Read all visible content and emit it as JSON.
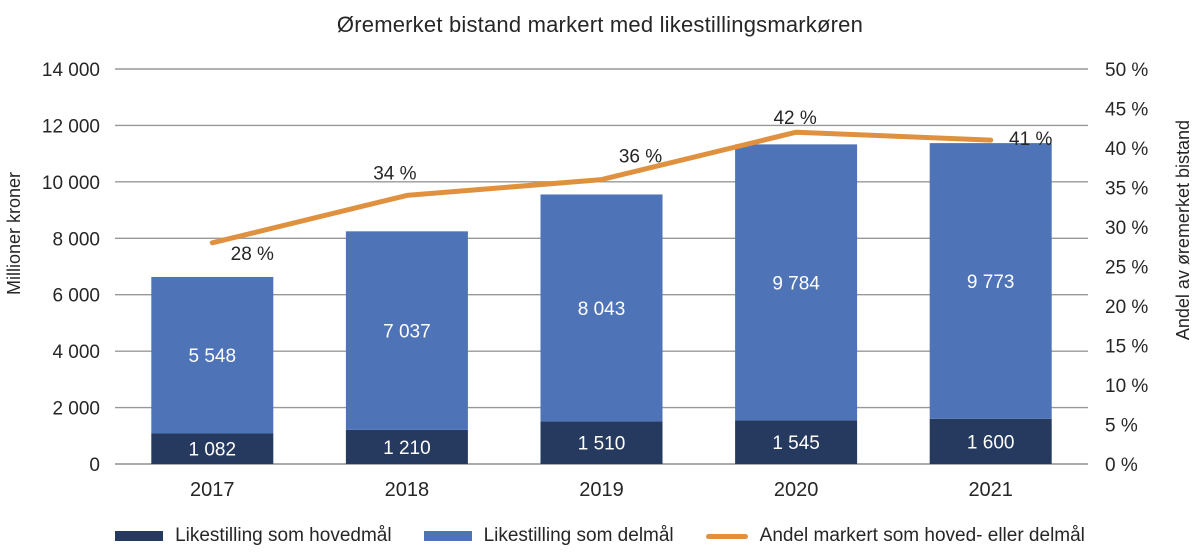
{
  "chart_data": {
    "type": "bar",
    "variant": "stacked-bars-with-line-on-secondary-axis",
    "title": "Øremerket bistand markert med likestillingsmarkøren",
    "categories": [
      "2017",
      "2018",
      "2019",
      "2020",
      "2021"
    ],
    "series": [
      {
        "name": "Likestilling som hovedmål",
        "values": [
          1082,
          1210,
          1510,
          1545,
          1600
        ],
        "labels": [
          "1 082",
          "1 210",
          "1 510",
          "1 545",
          "1 600"
        ],
        "color": "#26395e"
      },
      {
        "name": "Likestilling som delmål",
        "values": [
          5548,
          7037,
          8043,
          9784,
          9773
        ],
        "labels": [
          "5 548",
          "7 037",
          "8 043",
          "9 784",
          "9 773"
        ],
        "color": "#4e73b6"
      }
    ],
    "line_series": {
      "name": "Andel markert som hoved- eller delmål",
      "axis": "right",
      "values": [
        28,
        34,
        36,
        42,
        41
      ],
      "labels": [
        "28 %",
        "34 %",
        "36 %",
        "42 %",
        "41 %"
      ],
      "color": "#e0913f"
    },
    "y_left": {
      "label": "Millioner kroner",
      "min": 0,
      "max": 14000,
      "ticks": [
        {
          "value": 0,
          "label": "0"
        },
        {
          "value": 2000,
          "label": "2 000"
        },
        {
          "value": 4000,
          "label": "4 000"
        },
        {
          "value": 6000,
          "label": "6 000"
        },
        {
          "value": 8000,
          "label": "8 000"
        },
        {
          "value": 10000,
          "label": "10 000"
        },
        {
          "value": 12000,
          "label": "12 000"
        },
        {
          "value": 14000,
          "label": "14 000"
        }
      ]
    },
    "y_right": {
      "label": "Andel av øremerket bistand",
      "min": 0,
      "max": 50,
      "ticks": [
        {
          "value": 0,
          "label": "0 %"
        },
        {
          "value": 5,
          "label": "5 %"
        },
        {
          "value": 10,
          "label": "10 %"
        },
        {
          "value": 15,
          "label": "15 %"
        },
        {
          "value": 20,
          "label": "20 %"
        },
        {
          "value": 25,
          "label": "25 %"
        },
        {
          "value": 30,
          "label": "30 %"
        },
        {
          "value": 35,
          "label": "35 %"
        },
        {
          "value": 40,
          "label": "40 %"
        },
        {
          "value": 45,
          "label": "45 %"
        },
        {
          "value": 50,
          "label": "50 %"
        }
      ]
    },
    "grid": "horizontal gridlines at left-axis steps",
    "legend_position": "bottom",
    "text_color": "#262626",
    "gridline_color": "#989898"
  }
}
